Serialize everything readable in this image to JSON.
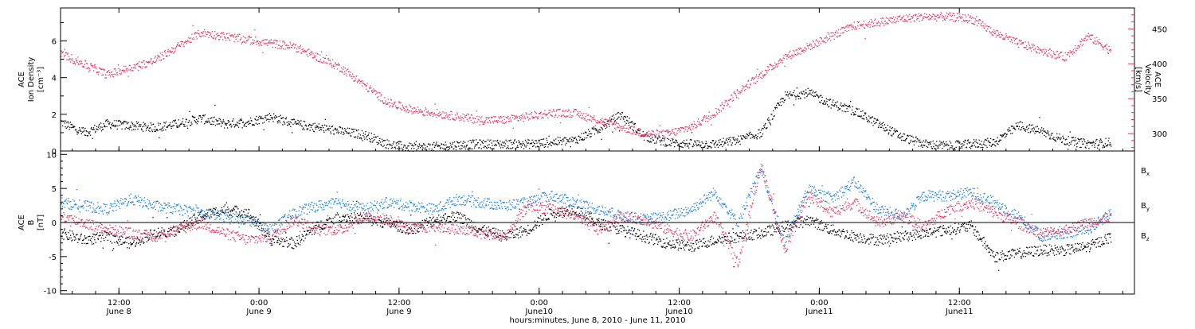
{
  "colors": {
    "black": "#000000",
    "density": "#000000",
    "velocity": "#e8325f",
    "bx": "#000000",
    "by": "#1a7fe0",
    "bz": "#e8325f"
  },
  "chart_data": [
    {
      "type": "scatter",
      "panel": "top",
      "left_axis_label": [
        "ACE",
        "Ion Density",
        "[cm⁻³]"
      ],
      "right_axis_label": [
        "ACE",
        "Velocity",
        "[km/s]"
      ],
      "ylim_left": [
        0,
        7.8
      ],
      "ylim_right": [
        275,
        480
      ],
      "yticks_left": [
        "0",
        "2",
        "4",
        "6"
      ],
      "yticks_right": [
        "300",
        "350",
        "400",
        "450"
      ],
      "x_range_hours": [
        0,
        92
      ],
      "series": [
        {
          "axis": "left",
          "x": [
            0,
            2,
            4,
            6,
            8,
            10,
            12,
            14,
            16,
            18,
            20,
            22,
            24,
            26,
            28,
            30,
            32,
            34,
            36,
            38,
            40,
            42,
            44,
            46,
            48,
            50,
            52,
            54,
            56,
            58,
            60,
            62,
            64,
            66,
            68,
            70,
            72,
            74,
            76,
            78,
            80,
            82,
            84,
            86,
            88,
            90
          ],
          "y": [
            1.6,
            1.0,
            1.5,
            1.4,
            1.3,
            1.5,
            1.8,
            1.5,
            1.6,
            1.9,
            1.5,
            1.3,
            1.1,
            0.9,
            0.4,
            0.2,
            0.25,
            0.35,
            0.4,
            0.4,
            0.4,
            0.5,
            0.6,
            1.2,
            2.0,
            0.8,
            0.5,
            0.4,
            0.4,
            0.6,
            1.0,
            3.0,
            3.2,
            2.6,
            2.2,
            1.5,
            0.8,
            0.4,
            0.3,
            0.4,
            0.5,
            1.4,
            1.1,
            0.6,
            0.4,
            0.5
          ]
        },
        {
          "axis": "right",
          "x": [
            0,
            2,
            4,
            6,
            8,
            10,
            12,
            14,
            16,
            18,
            20,
            22,
            24,
            26,
            28,
            30,
            32,
            34,
            36,
            38,
            40,
            42,
            44,
            46,
            48,
            50,
            52,
            54,
            56,
            58,
            60,
            62,
            64,
            66,
            68,
            70,
            72,
            74,
            76,
            78,
            80,
            82,
            84,
            86,
            88,
            90
          ],
          "y": [
            415,
            400,
            385,
            395,
            405,
            425,
            445,
            440,
            435,
            430,
            425,
            410,
            395,
            370,
            345,
            335,
            330,
            325,
            320,
            320,
            325,
            330,
            330,
            320,
            310,
            300,
            300,
            310,
            330,
            360,
            385,
            410,
            425,
            440,
            455,
            460,
            465,
            468,
            468,
            465,
            445,
            430,
            420,
            410,
            440,
            420
          ]
        }
      ]
    },
    {
      "type": "scatter",
      "panel": "bottom",
      "left_axis_label": [
        "ACE",
        "B",
        "[nT]"
      ],
      "ylim": [
        -10.5,
        10.5
      ],
      "yticks": [
        "-10",
        "-5",
        "0",
        "5",
        "10"
      ],
      "zero_line": true,
      "legend": [
        "Bx",
        "By",
        "Bz"
      ],
      "legend_placement": "right",
      "x_range_hours": [
        0,
        92
      ],
      "series": [
        {
          "name": "Bx",
          "x": [
            0,
            2,
            4,
            6,
            8,
            10,
            12,
            14,
            16,
            18,
            20,
            22,
            24,
            26,
            28,
            30,
            32,
            34,
            36,
            38,
            40,
            42,
            44,
            46,
            48,
            50,
            52,
            54,
            56,
            58,
            60,
            62,
            64,
            66,
            68,
            70,
            72,
            74,
            76,
            78,
            80,
            82,
            84,
            86,
            88,
            90
          ],
          "y": [
            -1.5,
            -2.5,
            -2.0,
            -3.0,
            -1.5,
            -1.0,
            1.0,
            2.0,
            1.5,
            -2.5,
            -3.0,
            -0.5,
            1.0,
            0.5,
            0.0,
            -1.0,
            0.5,
            1.0,
            -1.0,
            -2.0,
            -1.0,
            1.5,
            2.0,
            0.0,
            -1.0,
            -2.0,
            -3.0,
            -3.5,
            -2.5,
            -2.0,
            -1.5,
            -0.5,
            0.5,
            -1.0,
            -2.0,
            -2.5,
            -2.0,
            -1.5,
            -1.0,
            -0.5,
            -5.0,
            -4.5,
            -4.0,
            -4.0,
            -3.5,
            -2.0
          ]
        },
        {
          "name": "By",
          "x": [
            0,
            2,
            4,
            6,
            8,
            10,
            12,
            14,
            16,
            18,
            20,
            22,
            24,
            26,
            28,
            30,
            32,
            34,
            36,
            38,
            40,
            42,
            44,
            46,
            48,
            50,
            52,
            54,
            56,
            58,
            60,
            62,
            64,
            66,
            68,
            70,
            72,
            74,
            76,
            78,
            80,
            82,
            84,
            86,
            88,
            90
          ],
          "y": [
            3.0,
            2.5,
            2.0,
            3.5,
            2.5,
            2.0,
            1.5,
            1.0,
            0.5,
            -1.0,
            1.5,
            2.5,
            3.0,
            2.0,
            3.0,
            2.5,
            2.0,
            3.5,
            3.0,
            2.5,
            3.0,
            4.0,
            3.0,
            2.0,
            1.0,
            0.5,
            1.0,
            2.0,
            4.5,
            0.0,
            8.0,
            -3.0,
            5.0,
            3.5,
            6.0,
            2.0,
            1.0,
            4.0,
            4.0,
            4.5,
            3.0,
            1.0,
            -2.0,
            -1.5,
            -1.0,
            1.5
          ]
        },
        {
          "name": "Bz",
          "x": [
            0,
            2,
            4,
            6,
            8,
            10,
            12,
            14,
            16,
            18,
            20,
            22,
            24,
            26,
            28,
            30,
            32,
            34,
            36,
            38,
            40,
            42,
            44,
            46,
            48,
            50,
            52,
            54,
            56,
            58,
            60,
            62,
            64,
            66,
            68,
            70,
            72,
            74,
            76,
            78,
            80,
            82,
            84,
            86,
            88,
            90
          ],
          "y": [
            1.0,
            0.0,
            -1.0,
            -1.5,
            -2.0,
            -1.0,
            0.0,
            -1.5,
            -2.5,
            -2.0,
            0.5,
            -1.0,
            -1.0,
            1.0,
            0.5,
            -1.0,
            -0.5,
            -1.0,
            -1.5,
            -2.0,
            2.5,
            2.0,
            1.0,
            -1.0,
            1.0,
            0.5,
            -1.0,
            -2.0,
            1.0,
            -6.0,
            8.5,
            -4.0,
            4.0,
            1.5,
            3.0,
            0.0,
            1.0,
            -0.5,
            2.0,
            3.0,
            1.5,
            0.0,
            -1.5,
            -1.0,
            0.0,
            1.0
          ]
        }
      ]
    }
  ],
  "x_axis": {
    "ticks": [
      {
        "hour": 5,
        "time": "12:00",
        "date": "June 8"
      },
      {
        "hour": 17,
        "time": "0:00",
        "date": "June 9"
      },
      {
        "hour": 29,
        "time": "12:00",
        "date": "June 9"
      },
      {
        "hour": 41,
        "time": "0:00",
        "date": "June10"
      },
      {
        "hour": 53,
        "time": "12:00",
        "date": "June10"
      },
      {
        "hour": 65,
        "time": "0:00",
        "date": "June11"
      },
      {
        "hour": 77,
        "time": "12:00",
        "date": "June11"
      }
    ],
    "label": "hours:minutes,  June  8, 2010 - June 11, 2010"
  }
}
